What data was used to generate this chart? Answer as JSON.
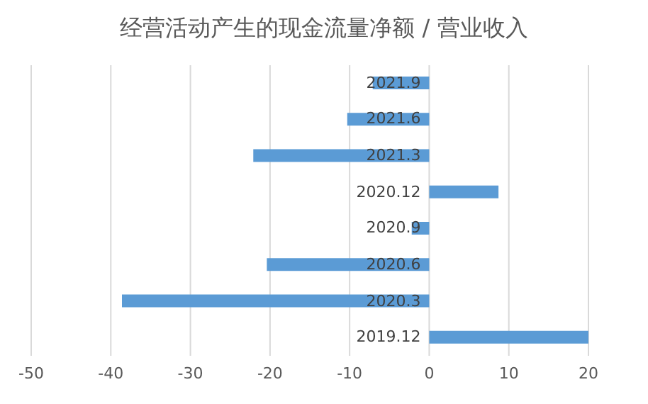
{
  "chart_data": {
    "type": "bar",
    "orientation": "horizontal",
    "title": "经营活动产生的现金流量净额 / 营业收入",
    "categories": [
      "2021.9",
      "2021.6",
      "2021.3",
      "2020.12",
      "2020.9",
      "2020.6",
      "2020.3",
      "2019.12"
    ],
    "values": [
      -7.1,
      -10.3,
      -22.1,
      8.7,
      -2.2,
      -20.4,
      -38.6,
      20
    ],
    "color": "#5b9bd5",
    "xlim": [
      -50,
      20
    ],
    "xticks": [
      -50,
      -40,
      -30,
      -20,
      -10,
      0,
      10,
      20
    ],
    "grid": "x"
  }
}
